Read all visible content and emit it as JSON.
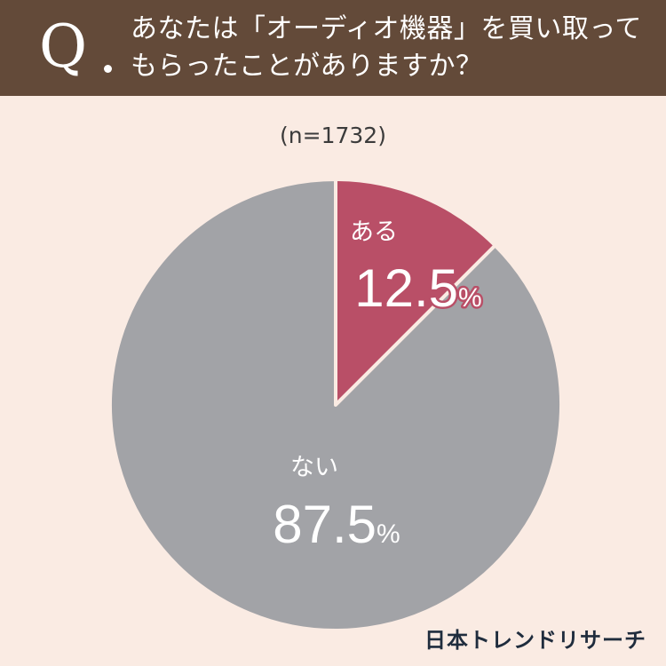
{
  "header": {
    "q_mark": "Q",
    "question_lines": [
      "あなたは「オーディオ機器」を買い取って",
      "もらったことがありますか？"
    ],
    "background_color": "#634a39"
  },
  "sample_size": "(n=1732)",
  "chart_data": {
    "type": "pie",
    "categories": [
      "ある",
      "ない"
    ],
    "values": [
      12.5,
      87.5
    ],
    "value_labels": [
      "12.5",
      "87.5"
    ],
    "unit": "%",
    "colors": [
      "#b94f67",
      "#a2a3a7"
    ],
    "start_angle": "12 o'clock",
    "direction": "clockwise"
  },
  "logo": "日本トレンドリサーチ"
}
